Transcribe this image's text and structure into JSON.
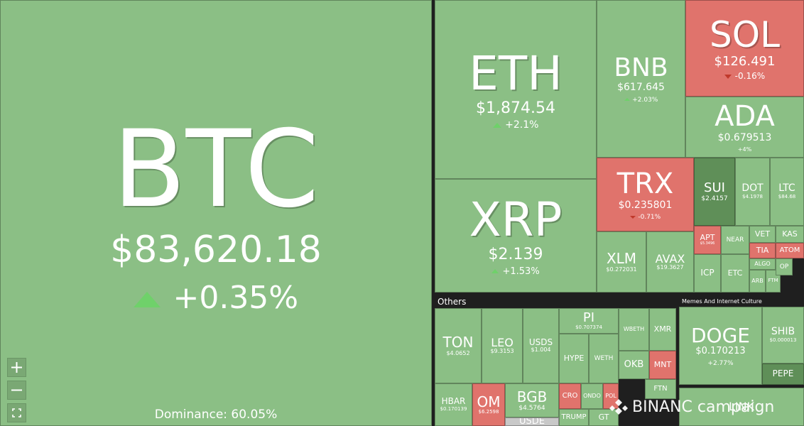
{
  "tiles": [
    {
      "symbol": "BTC",
      "price": "$83,620.18",
      "change": "+0.35%",
      "color": "#8bbf85"
    },
    {
      "symbol": "ETH",
      "price": "$1,874.54",
      "change": "+2.1%",
      "color": "#8bbf85"
    },
    {
      "symbol": "XRP",
      "price": "$2.139",
      "change": "+1.53%",
      "color": "#8bbf85"
    },
    {
      "symbol": "BNB",
      "price": "$617.645",
      "change": "+2.03%",
      "color": "#8bbf85"
    },
    {
      "symbol": "SOL",
      "price": "$126.491",
      "change": "-0.16%",
      "color": "#e0736c"
    },
    {
      "symbol": "ADA",
      "price": "$0.679513",
      "change": "+4%",
      "color": "#8bbf85"
    },
    {
      "symbol": "TRX",
      "price": "$0.235801",
      "change": "-0.71%",
      "color": "#e0736c"
    },
    {
      "symbol": "SUI",
      "price": "$2.4157",
      "color": "#5f8f58"
    },
    {
      "symbol": "DOT",
      "price": "$4.1978",
      "color": "#8bbf85"
    },
    {
      "symbol": "LTC",
      "price": "$84.68",
      "color": "#8bbf85"
    },
    {
      "symbol": "XLM",
      "price": "$0.272031",
      "color": "#8bbf85"
    },
    {
      "symbol": "AVAX",
      "price": "$19.3627",
      "color": "#8bbf85"
    },
    {
      "symbol": "APT",
      "price": "$5.3496",
      "color": "#e0736c"
    },
    {
      "symbol": "NEAR",
      "color": "#8bbf85"
    },
    {
      "symbol": "ICP",
      "color": "#8bbf85"
    },
    {
      "symbol": "ETC",
      "color": "#8bbf85"
    },
    {
      "symbol": "VET",
      "color": "#8bbf85"
    },
    {
      "symbol": "KAS",
      "color": "#8bbf85"
    },
    {
      "symbol": "TIA",
      "color": "#e0736c"
    },
    {
      "symbol": "ATOM",
      "color": "#e0736c"
    },
    {
      "symbol": "ALGO",
      "color": "#8bbf85"
    },
    {
      "symbol": "OP",
      "color": "#8bbf85"
    },
    {
      "symbol": "ARB",
      "color": "#8bbf85"
    },
    {
      "symbol": "FTM",
      "color": "#8bbf85"
    },
    {
      "symbol": "TON",
      "price": "$4.0652",
      "color": "#8bbf85"
    },
    {
      "symbol": "LEO",
      "price": "$9.3153",
      "color": "#8bbf85"
    },
    {
      "symbol": "USDS",
      "price": "$1.004",
      "color": "#8bbf85"
    },
    {
      "symbol": "PI",
      "price": "$0.707374",
      "color": "#8bbf85"
    },
    {
      "symbol": "HYPE",
      "color": "#8bbf85"
    },
    {
      "symbol": "WETH",
      "color": "#8bbf85"
    },
    {
      "symbol": "WBETH",
      "color": "#8bbf85"
    },
    {
      "symbol": "XMR",
      "color": "#8bbf85"
    },
    {
      "symbol": "OKB",
      "color": "#8bbf85"
    },
    {
      "symbol": "MNT",
      "color": "#e0736c"
    },
    {
      "symbol": "HBAR",
      "price": "$0.170139",
      "color": "#8bbf85"
    },
    {
      "symbol": "OM",
      "price": "$6.2598",
      "color": "#e0736c"
    },
    {
      "symbol": "BGB",
      "price": "$4.5764",
      "color": "#8bbf85"
    },
    {
      "symbol": "USDE",
      "color": "#c8c8c8"
    },
    {
      "symbol": "CRO",
      "color": "#e0736c"
    },
    {
      "symbol": "ONDO",
      "color": "#8bbf85"
    },
    {
      "symbol": "POL",
      "color": "#e0736c"
    },
    {
      "symbol": "FTN",
      "color": "#8bbf85"
    },
    {
      "symbol": "TRUMP",
      "color": "#8bbf85"
    },
    {
      "symbol": "GT",
      "color": "#8bbf85"
    },
    {
      "symbol": "DOGE",
      "price": "$0.170213",
      "change": "+2.77%",
      "color": "#8bbf85"
    },
    {
      "symbol": "SHIB",
      "price": "$0.000013",
      "color": "#8bbf85"
    },
    {
      "symbol": "PEPE",
      "color": "#5f8f58"
    },
    {
      "symbol": "LINK",
      "color": "#8bbf85"
    }
  ],
  "groups": [
    "Others",
    "Memes And Internet Culture"
  ],
  "dominance": "Dominance: 60.05%",
  "watermark": "BINANC campaign"
}
